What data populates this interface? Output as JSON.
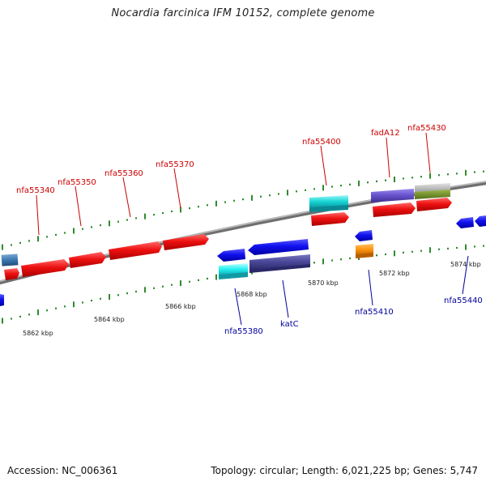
{
  "title": "Nocardia farcinica IFM 10152, complete genome",
  "footer": {
    "accession": "Accession: NC_006361",
    "summary": "Topology: circular; Length: 6,021,225 bp; Genes: 5,747"
  },
  "colors": {
    "forward_label": "#cc0000",
    "reverse_label": "#000099",
    "backbone": "#8a8a8a",
    "tick_mark": "#2e8b2e"
  },
  "scale_labels": [
    "5862 kbp",
    "5864 kbp",
    "5866 kbp",
    "5868 kbp",
    "5870 kbp",
    "5872 kbp",
    "5874 kbp"
  ],
  "gene_labels": {
    "nfa55340": "nfa55340",
    "nfa55350": "nfa55350",
    "nfa55360": "nfa55360",
    "nfa55370": "nfa55370",
    "nfa55400": "nfa55400",
    "fadA12": "fadA12",
    "nfa55430": "nfa55430",
    "nfa55380": "nfa55380",
    "katC": "katC",
    "nfa55410": "nfa55410",
    "nfa55440": "nfa55440"
  }
}
